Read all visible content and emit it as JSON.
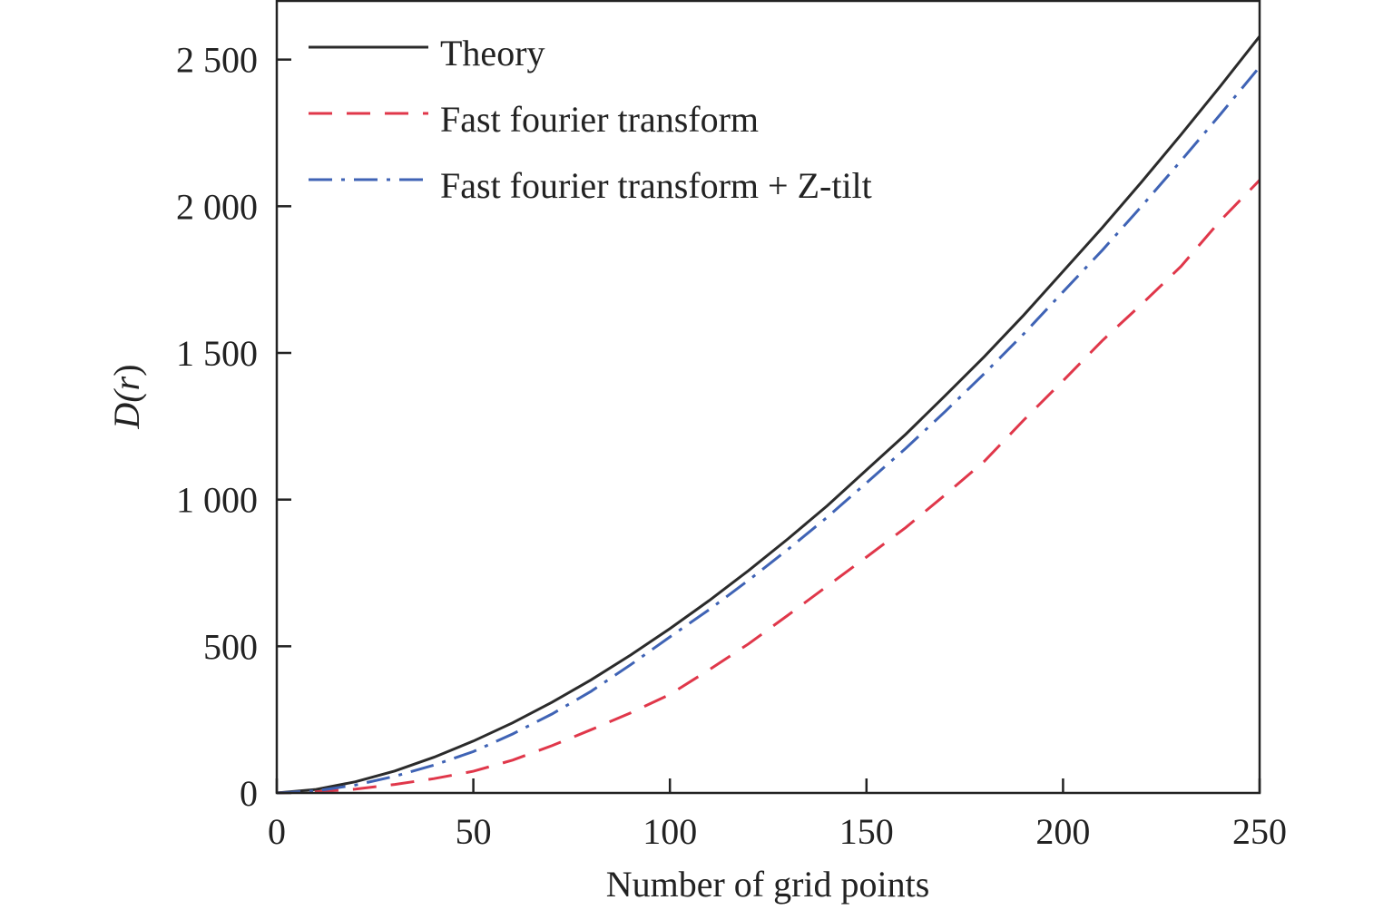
{
  "chart_data": {
    "type": "line",
    "title": "",
    "xlabel": "Number of grid points",
    "ylabel_main": "D(",
    "ylabel_var": "r",
    "ylabel_close": ")",
    "xlim": [
      0,
      250
    ],
    "ylim": [
      0,
      2700
    ],
    "grid": false,
    "legend_placement": "top-left",
    "x_ticks": [
      0,
      50,
      100,
      150,
      200,
      250
    ],
    "x_tick_labels": [
      "0",
      "50",
      "100",
      "150",
      "200",
      "250"
    ],
    "y_ticks": [
      0,
      500,
      1000,
      1500,
      2000,
      2500
    ],
    "y_tick_labels": [
      "0",
      "500",
      "1 000",
      "1 500",
      "2 000",
      "2 500"
    ],
    "x": [
      0,
      10,
      20,
      30,
      40,
      50,
      60,
      70,
      80,
      90,
      100,
      110,
      120,
      130,
      140,
      150,
      160,
      170,
      180,
      190,
      200,
      210,
      220,
      230,
      240,
      250
    ],
    "series": [
      {
        "name": "Theory",
        "color": "#2b2b2b",
        "dash": "solid",
        "values": [
          0,
          12,
          38,
          75,
          122,
          177,
          239,
          309,
          386,
          470,
          560,
          656,
          758,
          866,
          979,
          1101,
          1223,
          1354,
          1488,
          1629,
          1778,
          1927,
          2083,
          2244,
          2409,
          2579
        ]
      },
      {
        "name": "Fast fourier transform",
        "color": "#e0374a",
        "dash": "dashed",
        "values": [
          0,
          4,
          13,
          29,
          49,
          74,
          112,
          161,
          216,
          273,
          336,
          420,
          508,
          606,
          705,
          804,
          905,
          1016,
          1131,
          1271,
          1405,
          1542,
          1666,
          1795,
          1951,
          2089
        ]
      },
      {
        "name": "Fast fourier transform + Z-tilt",
        "color": "#3f63b5",
        "dash": "dashdot",
        "values": [
          0,
          7,
          27,
          57,
          95,
          141,
          201,
          269,
          347,
          437,
          532,
          625,
          725,
          830,
          940,
          1057,
          1175,
          1300,
          1430,
          1565,
          1708,
          1850,
          2000,
          2155,
          2313,
          2475
        ]
      }
    ]
  }
}
